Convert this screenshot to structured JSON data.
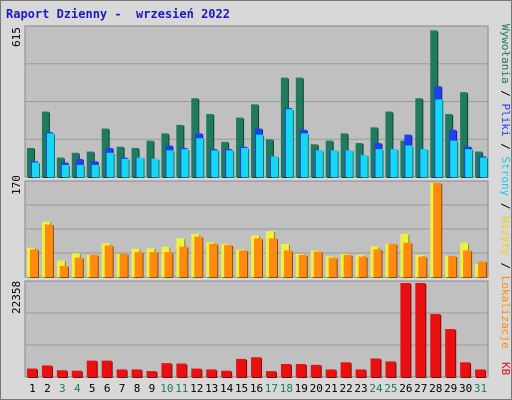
{
  "title": "Raport Dzienny -  wrzesień 2022",
  "colors": {
    "background": "#d8d8d8",
    "panel": "#c0c0c0",
    "grid": "#9a9a9a",
    "visits": "#1f7a5e",
    "pages": "#1f3ff0",
    "files": "#16d8f2",
    "visitors": "#f0f040",
    "sites": "#ff8a10",
    "kb": "#e81010",
    "title": "#1a1ac0",
    "weekend_label": "#1f7a5e"
  },
  "legend": {
    "visits": "Wywołania",
    "files": "Pliki",
    "pages": "Strony",
    "visitors": "Wizyty",
    "sites": "Lokalizacje",
    "kb": "KB",
    "separator": " / "
  },
  "chart_data": [
    {
      "type": "bar",
      "panel": "top",
      "ymax_label": "615",
      "ylim": [
        0,
        615
      ],
      "grid": true,
      "categories": [
        "1",
        "2",
        "3",
        "4",
        "5",
        "6",
        "7",
        "8",
        "9",
        "10",
        "11",
        "12",
        "13",
        "14",
        "15",
        "16",
        "17",
        "18",
        "19",
        "20",
        "21",
        "22",
        "23",
        "24",
        "25",
        "26",
        "27",
        "28",
        "29",
        "30",
        "31"
      ],
      "series": [
        {
          "name": "Wywołania",
          "values": [
            120,
            270,
            80,
            100,
            105,
            200,
            125,
            120,
            150,
            180,
            215,
            325,
            260,
            145,
            245,
            300,
            155,
            410,
            410,
            135,
            150,
            180,
            140,
            205,
            270,
            150,
            325,
            605,
            260,
            350,
            105
          ]
        },
        {
          "name": "Strony",
          "values": [
            65,
            185,
            60,
            75,
            65,
            120,
            80,
            80,
            75,
            130,
            120,
            180,
            115,
            115,
            125,
            200,
            85,
            285,
            195,
            110,
            110,
            110,
            90,
            140,
            115,
            175,
            115,
            375,
            195,
            125,
            85
          ]
        },
        {
          "name": "Pliki",
          "values": [
            60,
            180,
            50,
            50,
            50,
            100,
            75,
            80,
            75,
            110,
            115,
            160,
            110,
            110,
            120,
            175,
            85,
            280,
            180,
            110,
            110,
            110,
            90,
            115,
            115,
            130,
            115,
            320,
            150,
            115,
            80
          ]
        }
      ]
    },
    {
      "type": "bar",
      "panel": "middle",
      "ymax_label": "170",
      "ylim": [
        0,
        170
      ],
      "grid": true,
      "categories": [
        "1",
        "2",
        "3",
        "4",
        "5",
        "6",
        "7",
        "8",
        "9",
        "10",
        "11",
        "12",
        "13",
        "14",
        "15",
        "16",
        "17",
        "18",
        "19",
        "20",
        "21",
        "22",
        "23",
        "24",
        "25",
        "26",
        "27",
        "28",
        "29",
        "30",
        "31"
      ],
      "series": [
        {
          "name": "Wizyty",
          "values": [
            53,
            100,
            30,
            43,
            40,
            61,
            42,
            51,
            52,
            55,
            70,
            78,
            63,
            60,
            50,
            75,
            83,
            60,
            42,
            48,
            37,
            42,
            40,
            55,
            60,
            78,
            40,
            170,
            38,
            62,
            23
          ]
        },
        {
          "name": "Lokalizacje",
          "values": [
            50,
            95,
            20,
            35,
            40,
            57,
            42,
            45,
            45,
            45,
            55,
            73,
            60,
            58,
            48,
            70,
            70,
            48,
            40,
            46,
            35,
            40,
            37,
            50,
            60,
            62,
            37,
            170,
            38,
            48,
            28
          ]
        }
      ]
    },
    {
      "type": "bar",
      "panel": "bottom",
      "ymax_label": "22358",
      "ylim": [
        0,
        22358
      ],
      "grid": true,
      "categories": [
        "1",
        "2",
        "3",
        "4",
        "5",
        "6",
        "7",
        "8",
        "9",
        "10",
        "11",
        "12",
        "13",
        "14",
        "15",
        "16",
        "17",
        "18",
        "19",
        "20",
        "21",
        "22",
        "23",
        "24",
        "25",
        "26",
        "27",
        "28",
        "29",
        "30",
        "31"
      ],
      "series": [
        {
          "name": "KB",
          "values": [
            2000,
            2750,
            1600,
            1500,
            3900,
            3900,
            1800,
            1800,
            1400,
            3300,
            3200,
            2000,
            1800,
            1500,
            4300,
            4700,
            1400,
            3100,
            3100,
            2900,
            1800,
            3500,
            1800,
            4400,
            3700,
            22358,
            22358,
            15000,
            11400,
            3500,
            1800
          ]
        }
      ]
    }
  ],
  "x_labels": [
    "1",
    "2",
    "3",
    "4",
    "5",
    "6",
    "7",
    "8",
    "9",
    "10",
    "11",
    "12",
    "13",
    "14",
    "15",
    "16",
    "17",
    "18",
    "19",
    "20",
    "21",
    "22",
    "23",
    "24",
    "25",
    "26",
    "27",
    "28",
    "29",
    "30",
    "31"
  ],
  "weekend_days": [
    "3",
    "4",
    "10",
    "11",
    "17",
    "18",
    "24",
    "25",
    "31"
  ]
}
